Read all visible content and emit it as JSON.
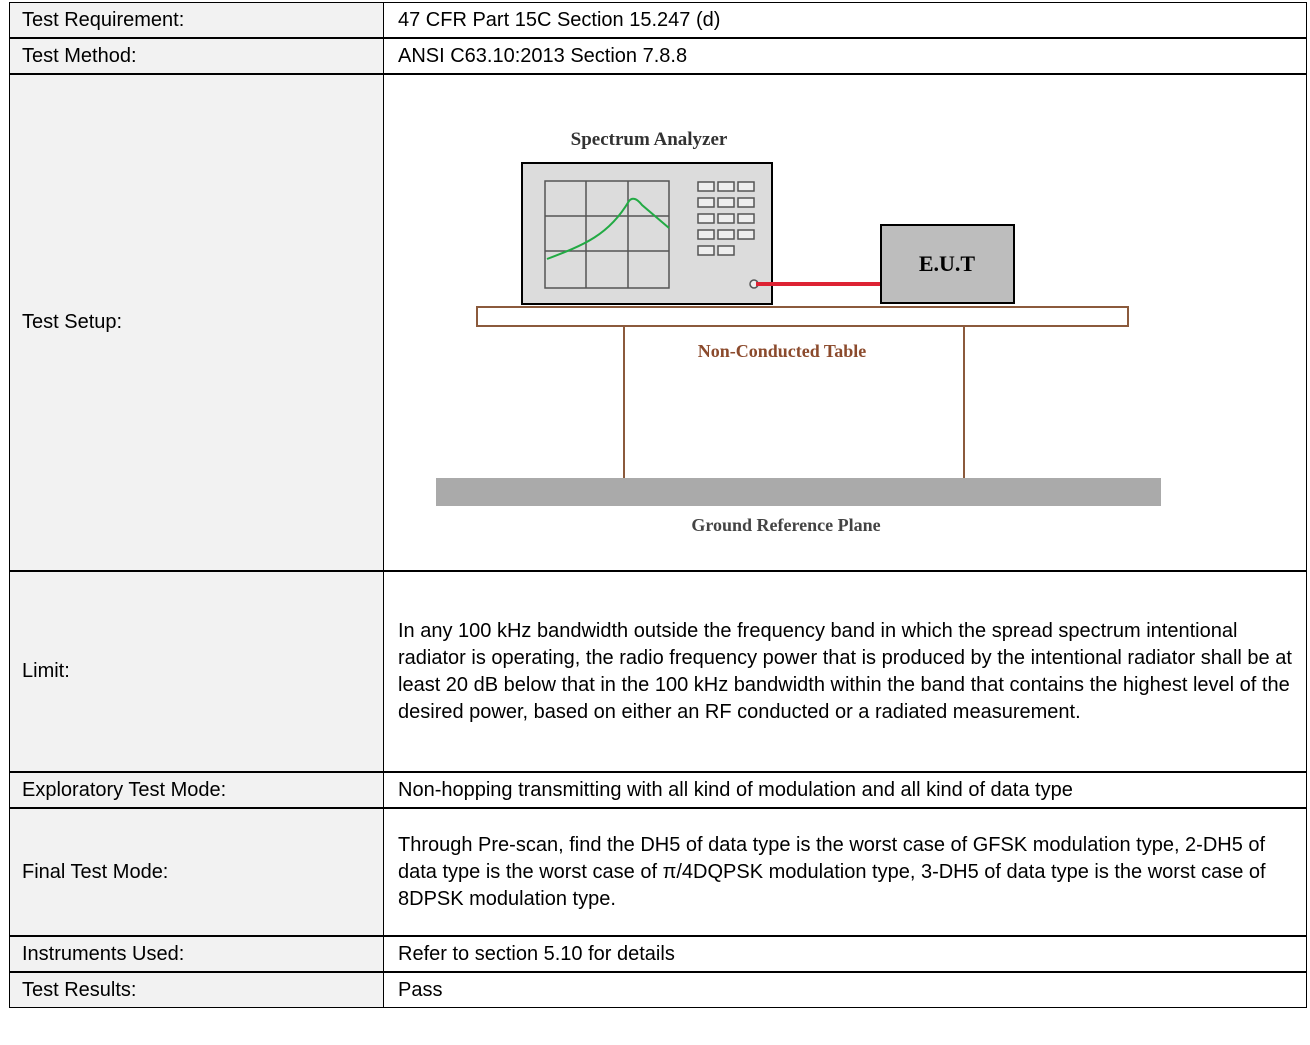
{
  "rows": [
    {
      "label": "Test Requirement:",
      "value": "47 CFR Part 15C Section 15.247 (d)"
    },
    {
      "label": "Test Method:",
      "value": "ANSI C63.10:2013 Section 7.8.8"
    },
    {
      "label": "Test Setup:",
      "diagram": {
        "analyzer": "Spectrum Analyzer",
        "eut": "E.U.T",
        "table": "Non-Conducted Table",
        "ground": "Ground Reference Plane"
      }
    },
    {
      "label": "Limit:",
      "value": "In any 100 kHz bandwidth outside the frequency band in which the spread spectrum intentional radiator is operating, the radio frequency power that is produced by the intentional radiator shall be at least 20 dB below that in the 100 kHz bandwidth within the band that contains the highest level of the desired power, based on either an RF conducted or a radiated measurement."
    },
    {
      "label": "Exploratory Test Mode:",
      "value": "Non-hopping transmitting with all kind of modulation and all kind of data type"
    },
    {
      "label": "Final Test Mode:",
      "value": "Through Pre-scan, find the DH5 of data type is the worst case of GFSK modulation type, 2-DH5 of data type is the worst case of π/4DQPSK modulation type, 3-DH5 of data type is the worst case of 8DPSK modulation type."
    },
    {
      "label": "Instruments Used:",
      "value": "Refer to section 5.10 for details"
    },
    {
      "label": "Test Results:",
      "value": "Pass"
    }
  ]
}
